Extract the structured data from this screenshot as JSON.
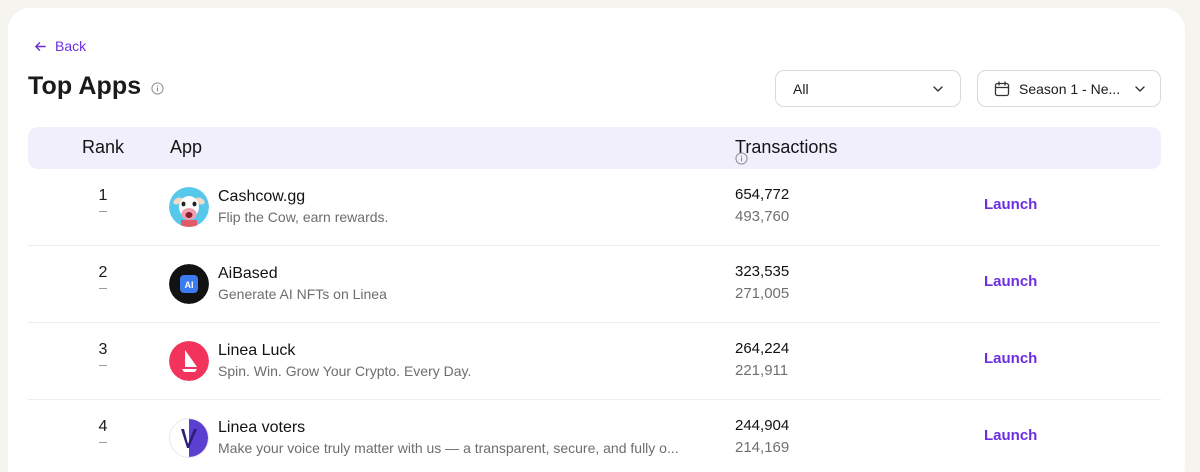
{
  "nav": {
    "back_label": "Back"
  },
  "header": {
    "title": "Top Apps"
  },
  "filters": {
    "category": {
      "value": "All"
    },
    "season": {
      "value": "Season 1 - Ne..."
    }
  },
  "table": {
    "columns": {
      "rank": "Rank",
      "app": "App",
      "transactions": "Transactions"
    },
    "rows": [
      {
        "rank": "1",
        "name": "Cashcow.gg",
        "description": "Flip the Cow, earn rewards.",
        "tx_primary": "654,772",
        "tx_secondary": "493,760",
        "action": "Launch",
        "icon": "cashcow-cow-logo"
      },
      {
        "rank": "2",
        "name": "AiBased",
        "description": "Generate AI NFTs on Linea",
        "tx_primary": "323,535",
        "tx_secondary": "271,005",
        "action": "Launch",
        "icon": "aibased-ai-chip-logo"
      },
      {
        "rank": "3",
        "name": "Linea Luck",
        "description": "Spin. Win. Grow Your Crypto. Every Day.",
        "tx_primary": "264,224",
        "tx_secondary": "221,911",
        "action": "Launch",
        "icon": "linea-luck-sail-logo"
      },
      {
        "rank": "4",
        "name": "Linea voters",
        "description": "Make your voice truly matter with us — a transparent, secure, and fully o...",
        "tx_primary": "244,904",
        "tx_secondary": "214,169",
        "action": "Launch",
        "icon": "linea-voters-v-logo"
      }
    ]
  },
  "colors": {
    "accent": "#6b2fe0",
    "header_bg": "#f2effc",
    "page_bg": "#f6f4ef"
  }
}
